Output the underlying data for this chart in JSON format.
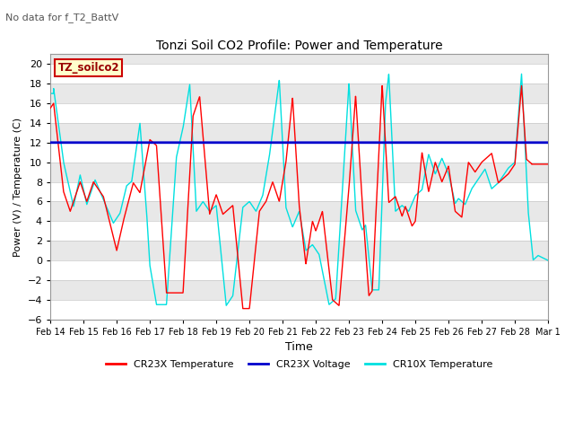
{
  "title": "Tonzi Soil CO2 Profile: Power and Temperature",
  "subtitle": "No data for f_T2_BattV",
  "xlabel": "Time",
  "ylabel": "Power (V) / Temperature (C)",
  "ylim": [
    -6,
    21
  ],
  "yticks": [
    -6,
    -4,
    -2,
    0,
    2,
    4,
    6,
    8,
    10,
    12,
    14,
    16,
    18,
    20
  ],
  "legend_label_box": "TZ_soilco2",
  "legend_entries": [
    "CR23X Temperature",
    "CR23X Voltage",
    "CR10X Temperature"
  ],
  "cr23x_voltage_value": 12.0,
  "background_color": "#ffffff",
  "plot_bg_color": "#e8e8e8",
  "grid_color": "#ffffff",
  "xtick_labels": [
    "Feb 14",
    "Feb 15",
    "Feb 16",
    "Feb 17",
    "Feb 18",
    "Feb 19",
    "Feb 20",
    "Feb 21",
    "Feb 22",
    "Feb 23",
    "Feb 24",
    "Feb 25",
    "Feb 26",
    "Feb 27",
    "Feb 28",
    "Mar 1"
  ],
  "cr23x_color": "#ff0000",
  "cr10x_color": "#00e0e0",
  "voltage_color": "#0000cc"
}
